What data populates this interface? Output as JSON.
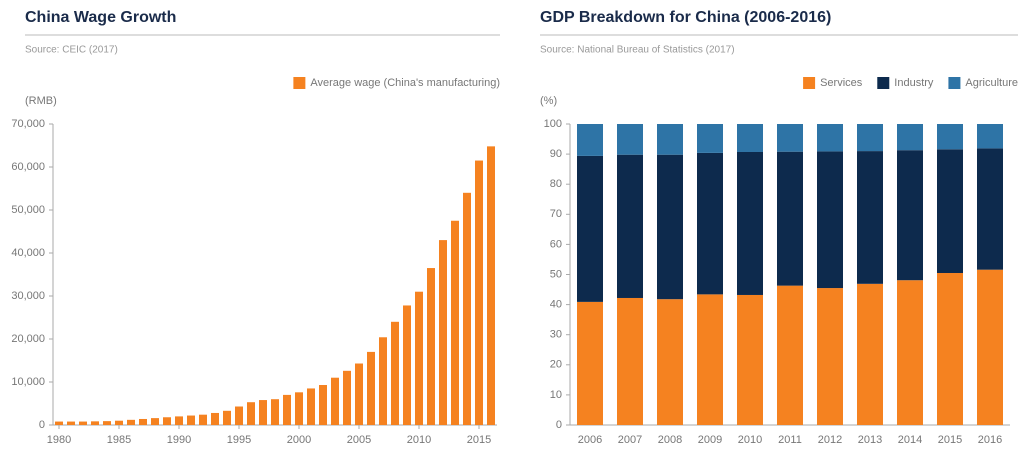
{
  "chart_data": [
    {
      "type": "bar",
      "title": "China Wage Growth",
      "source": "Source: CEIC (2017)",
      "y_label": "(RMB)",
      "series": [
        {
          "name": "Average wage (China's manufacturing)",
          "color": "#f58220",
          "values": [
            800,
            800,
            800,
            850,
            900,
            1000,
            1200,
            1400,
            1600,
            1800,
            2000,
            2200,
            2400,
            2800,
            3300,
            4300,
            5300,
            5800,
            6000,
            7000,
            7600,
            8500,
            9300,
            11000,
            12600,
            14300,
            17000,
            20400,
            24000,
            27800,
            31000,
            36500,
            43000,
            47500,
            54000,
            61500,
            64800
          ]
        }
      ],
      "x": [
        1980,
        1981,
        1982,
        1983,
        1984,
        1985,
        1986,
        1987,
        1988,
        1989,
        1990,
        1991,
        1992,
        1993,
        1994,
        1995,
        1996,
        1997,
        1998,
        1999,
        2000,
        2001,
        2002,
        2003,
        2004,
        2005,
        2006,
        2007,
        2008,
        2009,
        2010,
        2011,
        2012,
        2013,
        2014,
        2015,
        2016
      ],
      "xlim": [
        1979.5,
        2016.5
      ],
      "xticks": [
        1980,
        1985,
        1990,
        1995,
        2000,
        2005,
        2010,
        2015
      ],
      "ylim": [
        0,
        70000
      ],
      "yticks": [
        0,
        {
          "value": 10000,
          "label": "10,000"
        },
        {
          "value": 20000,
          "label": "20,000"
        },
        {
          "value": 30000,
          "label": "30,000"
        },
        {
          "value": 40000,
          "label": "40,000"
        },
        {
          "value": 50000,
          "label": "50,000"
        },
        {
          "value": 60000,
          "label": "60,000"
        },
        {
          "value": 70000,
          "label": "70,000"
        }
      ],
      "legend": "top-right"
    },
    {
      "type": "stacked_bar",
      "title": "GDP Breakdown for China (2006-2016)",
      "source": "Source: National Bureau of Statistics (2017)",
      "y_label": "(%)",
      "categories": [
        "2006",
        "2007",
        "2008",
        "2009",
        "2010",
        "2011",
        "2012",
        "2013",
        "2014",
        "2015",
        "2016"
      ],
      "series": [
        {
          "name": "Services",
          "color": "#f58220",
          "values": [
            40.9,
            42.2,
            41.8,
            43.4,
            43.2,
            46.3,
            45.5,
            46.9,
            48.1,
            50.5,
            51.6
          ]
        },
        {
          "name": "Industry",
          "color": "#0d2a4d",
          "values": [
            48.5,
            47.6,
            48.0,
            47.0,
            47.5,
            44.5,
            45.4,
            44.1,
            43.2,
            41.1,
            40.3
          ]
        },
        {
          "name": "Agriculture",
          "color": "#2e74a6",
          "values": [
            10.6,
            10.2,
            10.2,
            9.6,
            9.3,
            9.2,
            9.1,
            9.0,
            8.7,
            8.4,
            8.1
          ]
        }
      ],
      "ylim": [
        0,
        100
      ],
      "yticks": [
        0,
        10,
        20,
        30,
        40,
        50,
        60,
        70,
        80,
        90,
        100
      ],
      "legend": "top-right"
    }
  ]
}
